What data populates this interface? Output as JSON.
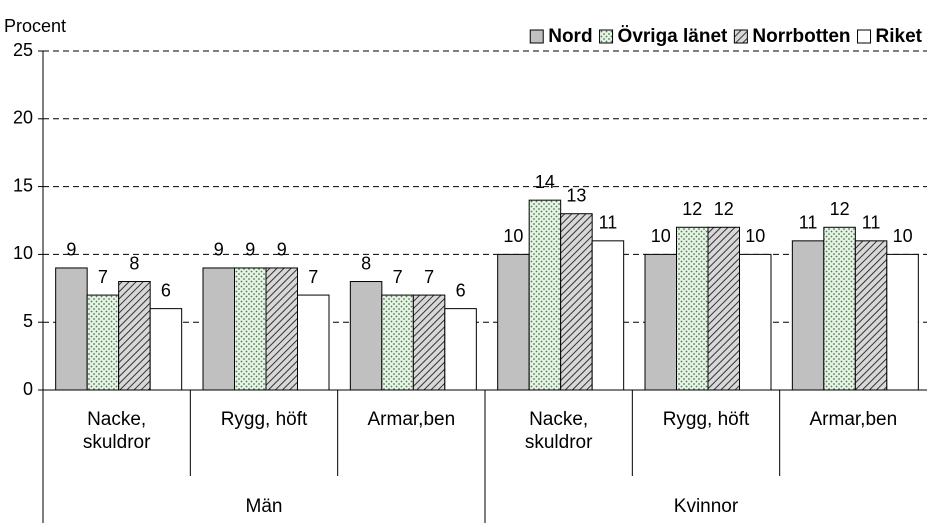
{
  "chart_data": {
    "type": "bar",
    "y_label": "Procent",
    "categories": [
      "Nacke, skuldror",
      "Rygg, höft",
      "Armar,ben",
      "Nacke, skuldror",
      "Rygg, höft",
      "Armar,ben"
    ],
    "groups": [
      "Män",
      "Kvinnor"
    ],
    "series": [
      {
        "name": "Nord",
        "color": "#c0c0c0",
        "pattern": "solid",
        "values": [
          9,
          9,
          8,
          10,
          10,
          11
        ]
      },
      {
        "name": "Övriga länet",
        "color": "#e8f3e8",
        "pattern": "dots",
        "values": [
          7,
          9,
          7,
          14,
          12,
          12
        ]
      },
      {
        "name": "Norrbotten",
        "color": "#d0d0d0",
        "pattern": "hatch",
        "values": [
          8,
          9,
          7,
          13,
          12,
          11
        ]
      },
      {
        "name": "Riket",
        "color": "#ffffff",
        "pattern": "solid",
        "values": [
          6,
          7,
          6,
          11,
          10,
          10
        ]
      }
    ],
    "ylim": [
      0,
      25
    ],
    "yticks": [
      0,
      5,
      10,
      15,
      20,
      25
    ],
    "grid": true,
    "legend": "top-right"
  }
}
